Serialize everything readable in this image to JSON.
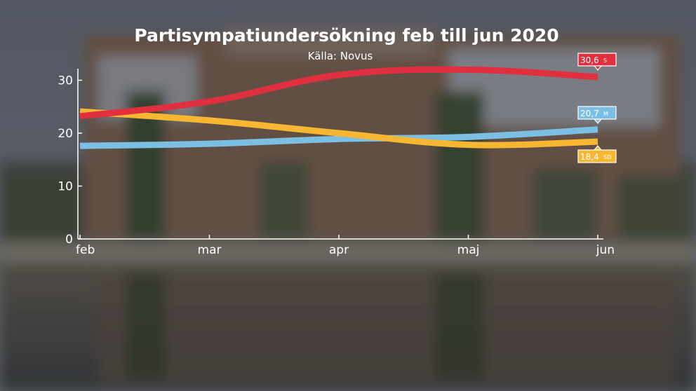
{
  "chart_data": {
    "type": "line",
    "title": "Partisympatiundersökning feb till jun 2020",
    "subtitle": "Källa: Novus",
    "categories": [
      "feb",
      "mar",
      "apr",
      "maj",
      "jun"
    ],
    "y_ticks": [
      "0",
      "10",
      "20",
      "30"
    ],
    "ylim": [
      0,
      33
    ],
    "grid": false,
    "series": [
      {
        "name": "S",
        "color": "#e03040",
        "values": [
          23.2,
          26.0,
          31.0,
          32.0,
          30.6
        ],
        "end_label": "30,6"
      },
      {
        "name": "M",
        "color": "#7bbfe3",
        "values": [
          17.6,
          18.0,
          18.9,
          19.3,
          20.7
        ],
        "end_label": "20,7"
      },
      {
        "name": "SD",
        "color": "#f7b733",
        "values": [
          24.1,
          22.4,
          20.0,
          17.8,
          18.4
        ],
        "end_label": "18,4"
      }
    ]
  }
}
